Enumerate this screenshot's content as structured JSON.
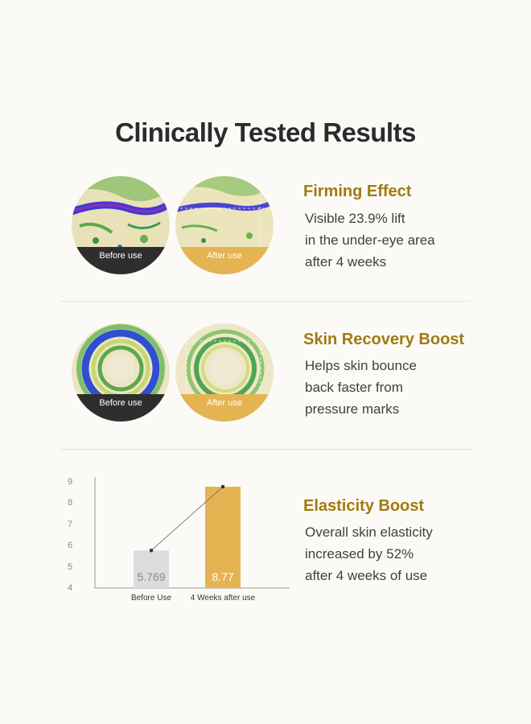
{
  "title": "Clinically Tested Results",
  "sections": [
    {
      "heading": "Firming Effect",
      "lines": [
        "Visible 23.9% lift",
        "in the under-eye area",
        "after 4 weeks"
      ],
      "before_label": "Before use",
      "after_label": "After use"
    },
    {
      "heading": "Skin Recovery Boost",
      "lines": [
        "Helps skin bounce",
        "back faster from",
        "pressure marks"
      ],
      "before_label": "Before use",
      "after_label": "After use"
    },
    {
      "heading": "Elasticity Boost",
      "lines": [
        "Overall skin elasticity",
        "increased by 52%",
        "after 4 weeks of use"
      ]
    }
  ],
  "colors": {
    "heading": "#a17a10",
    "accent_gold": "#e4b452",
    "dark_band": "#2e2e2e",
    "before_bar": "#dcdcdc"
  },
  "chart_data": {
    "type": "bar",
    "categories": [
      "Before Use",
      "4 Weeks after use"
    ],
    "values": [
      5.769,
      8.77
    ],
    "value_labels": [
      "5.769",
      "8.77"
    ],
    "ylim": [
      4,
      9
    ],
    "yticks": [
      "4",
      "5",
      "6",
      "7",
      "8",
      "9"
    ],
    "grid": false
  }
}
